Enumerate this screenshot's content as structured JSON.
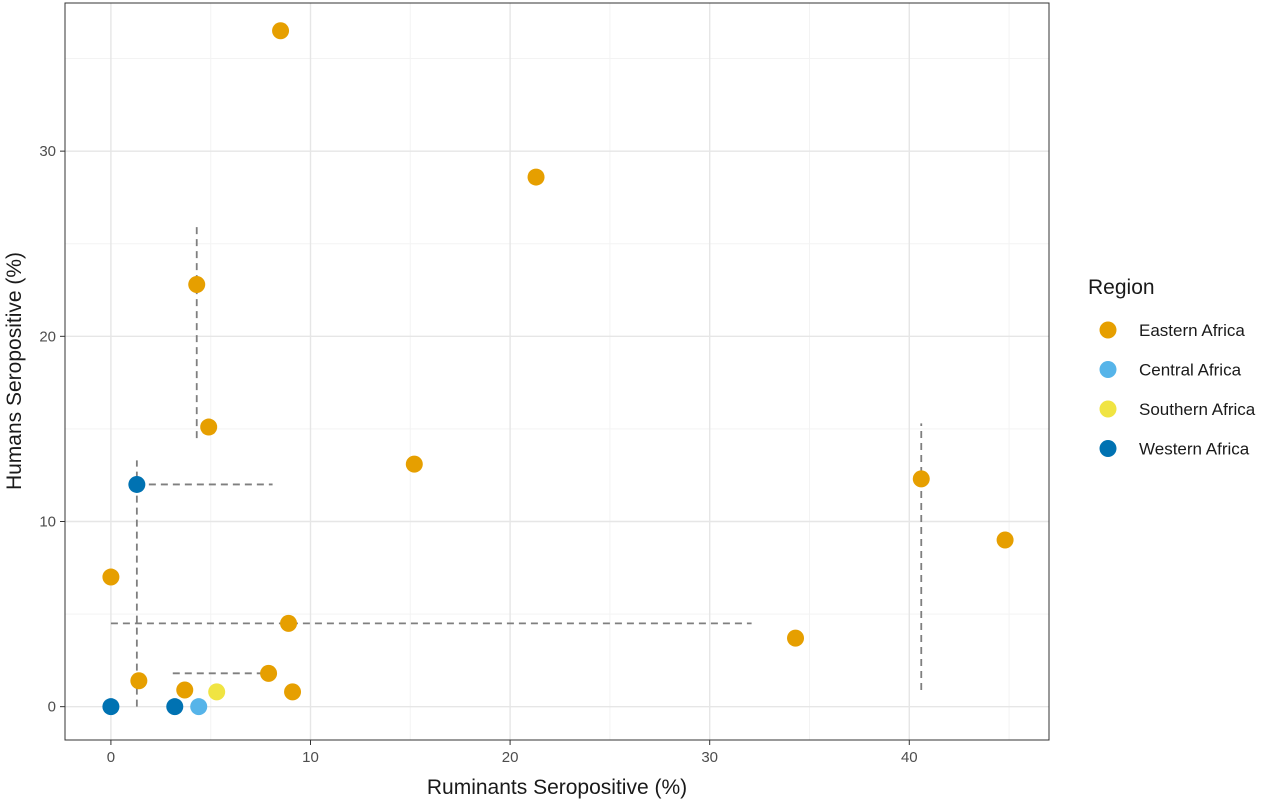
{
  "chart_data": {
    "type": "scatter",
    "title": "",
    "xlabel": "Ruminants Seropositive (%)",
    "ylabel": "Humans Seropositive (%)",
    "xlim": [
      -2.3,
      47
    ],
    "ylim": [
      -1.8,
      38
    ],
    "x_ticks": [
      0,
      10,
      20,
      30,
      40
    ],
    "y_ticks": [
      0,
      10,
      20,
      30
    ],
    "grid": true,
    "legend": {
      "title": "Region",
      "placement": "right",
      "entries": [
        {
          "name": "Eastern Africa",
          "color": "#E69F00"
        },
        {
          "name": "Central Africa",
          "color": "#56B4E9"
        },
        {
          "name": "Southern Africa",
          "color": "#F0E442"
        },
        {
          "name": "Western Africa",
          "color": "#0072B2"
        }
      ]
    },
    "series": [
      {
        "name": "Eastern Africa",
        "color": "#E69F00",
        "points": [
          {
            "x": 8.5,
            "y": 36.5
          },
          {
            "x": 21.3,
            "y": 28.6
          },
          {
            "x": 4.3,
            "y": 22.8
          },
          {
            "x": 4.9,
            "y": 15.1
          },
          {
            "x": 15.2,
            "y": 13.1
          },
          {
            "x": 40.6,
            "y": 12.3
          },
          {
            "x": 44.8,
            "y": 9.0
          },
          {
            "x": 0.0,
            "y": 7.0
          },
          {
            "x": 8.9,
            "y": 4.5
          },
          {
            "x": 34.3,
            "y": 3.7
          },
          {
            "x": 7.9,
            "y": 1.8
          },
          {
            "x": 1.4,
            "y": 1.4
          },
          {
            "x": 3.7,
            "y": 0.9
          },
          {
            "x": 9.1,
            "y": 0.8
          }
        ]
      },
      {
        "name": "Central Africa",
        "color": "#56B4E9",
        "points": [
          {
            "x": 4.4,
            "y": 0.0
          }
        ]
      },
      {
        "name": "Southern Africa",
        "color": "#F0E442",
        "points": [
          {
            "x": 5.3,
            "y": 0.8
          }
        ]
      },
      {
        "name": "Western Africa",
        "color": "#0072B2",
        "points": [
          {
            "x": 1.3,
            "y": 12.0
          },
          {
            "x": 0.0,
            "y": 0.0
          },
          {
            "x": 3.2,
            "y": 0.0
          }
        ]
      }
    ],
    "dashed_lines": [
      {
        "x1": 4.3,
        "y1": 14.5,
        "x2": 4.3,
        "y2": 25.9
      },
      {
        "x1": 1.3,
        "y1": 12.0,
        "x2": 8.1,
        "y2": 12.0
      },
      {
        "x1": 1.3,
        "y1": 0.0,
        "x2": 1.3,
        "y2": 13.3
      },
      {
        "x1": 0.0,
        "y1": 4.5,
        "x2": 32.1,
        "y2": 4.5
      },
      {
        "x1": 3.1,
        "y1": 1.8,
        "x2": 7.9,
        "y2": 1.8
      },
      {
        "x1": 40.6,
        "y1": 0.9,
        "x2": 40.6,
        "y2": 15.3
      }
    ]
  }
}
